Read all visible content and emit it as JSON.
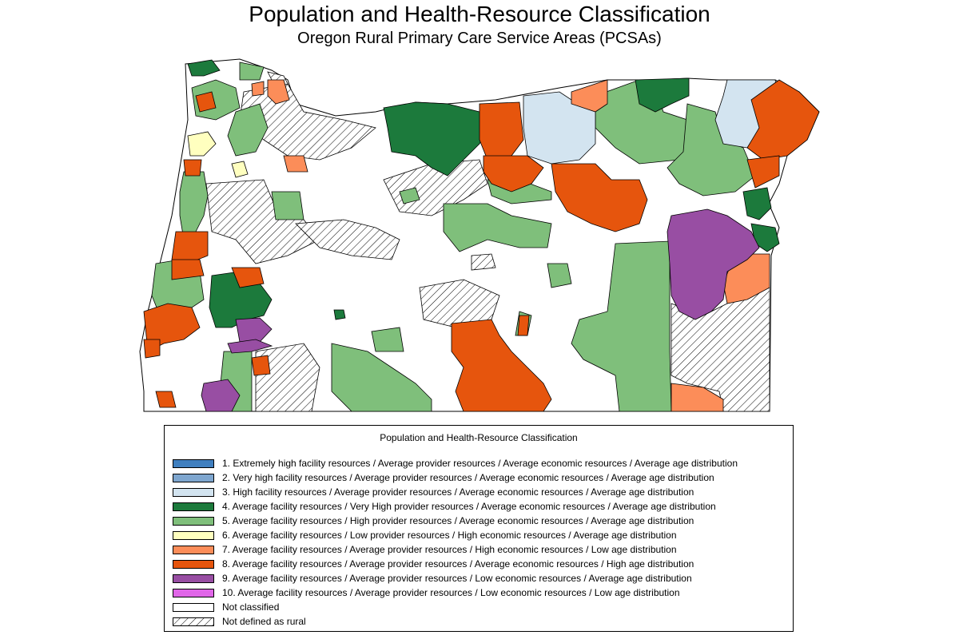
{
  "title": "Population and Health-Resource Classification",
  "subtitle": "Oregon Rural Primary Care Service Areas (PCSAs)",
  "legend": {
    "title": "Population and Health-Resource Classification",
    "items": [
      {
        "label": "1. Extremely high facility resources / Average provider resources / Average economic resources / Average age distribution",
        "color": "#3f7fbf"
      },
      {
        "label": "2. Very high facility resources / Average provider resources / Average economic resources / Average age distribution",
        "color": "#7ea6cf"
      },
      {
        "label": "3. High facility resources / Average provider resources / Average economic resources / Average age distribution",
        "color": "#d3e4f0"
      },
      {
        "label": "4. Average facility resources / Very High provider resources / Average economic resources / Average age distribution",
        "color": "#1c7a3c"
      },
      {
        "label": "5. Average facility resources / High provider resources / Average economic resources / Average age distribution",
        "color": "#7fbf7b"
      },
      {
        "label": "6. Average facility resources / Low provider resources / High economic resources / Average age distribution",
        "color": "#ffffbf"
      },
      {
        "label": "7. Average facility resources / Average provider resources / High economic resources / Low age distribution",
        "color": "#fc8d59"
      },
      {
        "label": "8. Average facility resources / Average provider resources / Average economic resources / High age distribution",
        "color": "#e6550d"
      },
      {
        "label": "9. Average facility resources / Average provider resources / Low economic resources / Average age distribution",
        "color": "#984ea3"
      },
      {
        "label": "10. Average facility resources / Average provider resources / Low economic resources / Low age distribution",
        "color": "#e066e8"
      },
      {
        "label": "Not classified",
        "color": "#ffffff"
      },
      {
        "label": "Not defined as rural",
        "color": "hatch"
      }
    ]
  }
}
